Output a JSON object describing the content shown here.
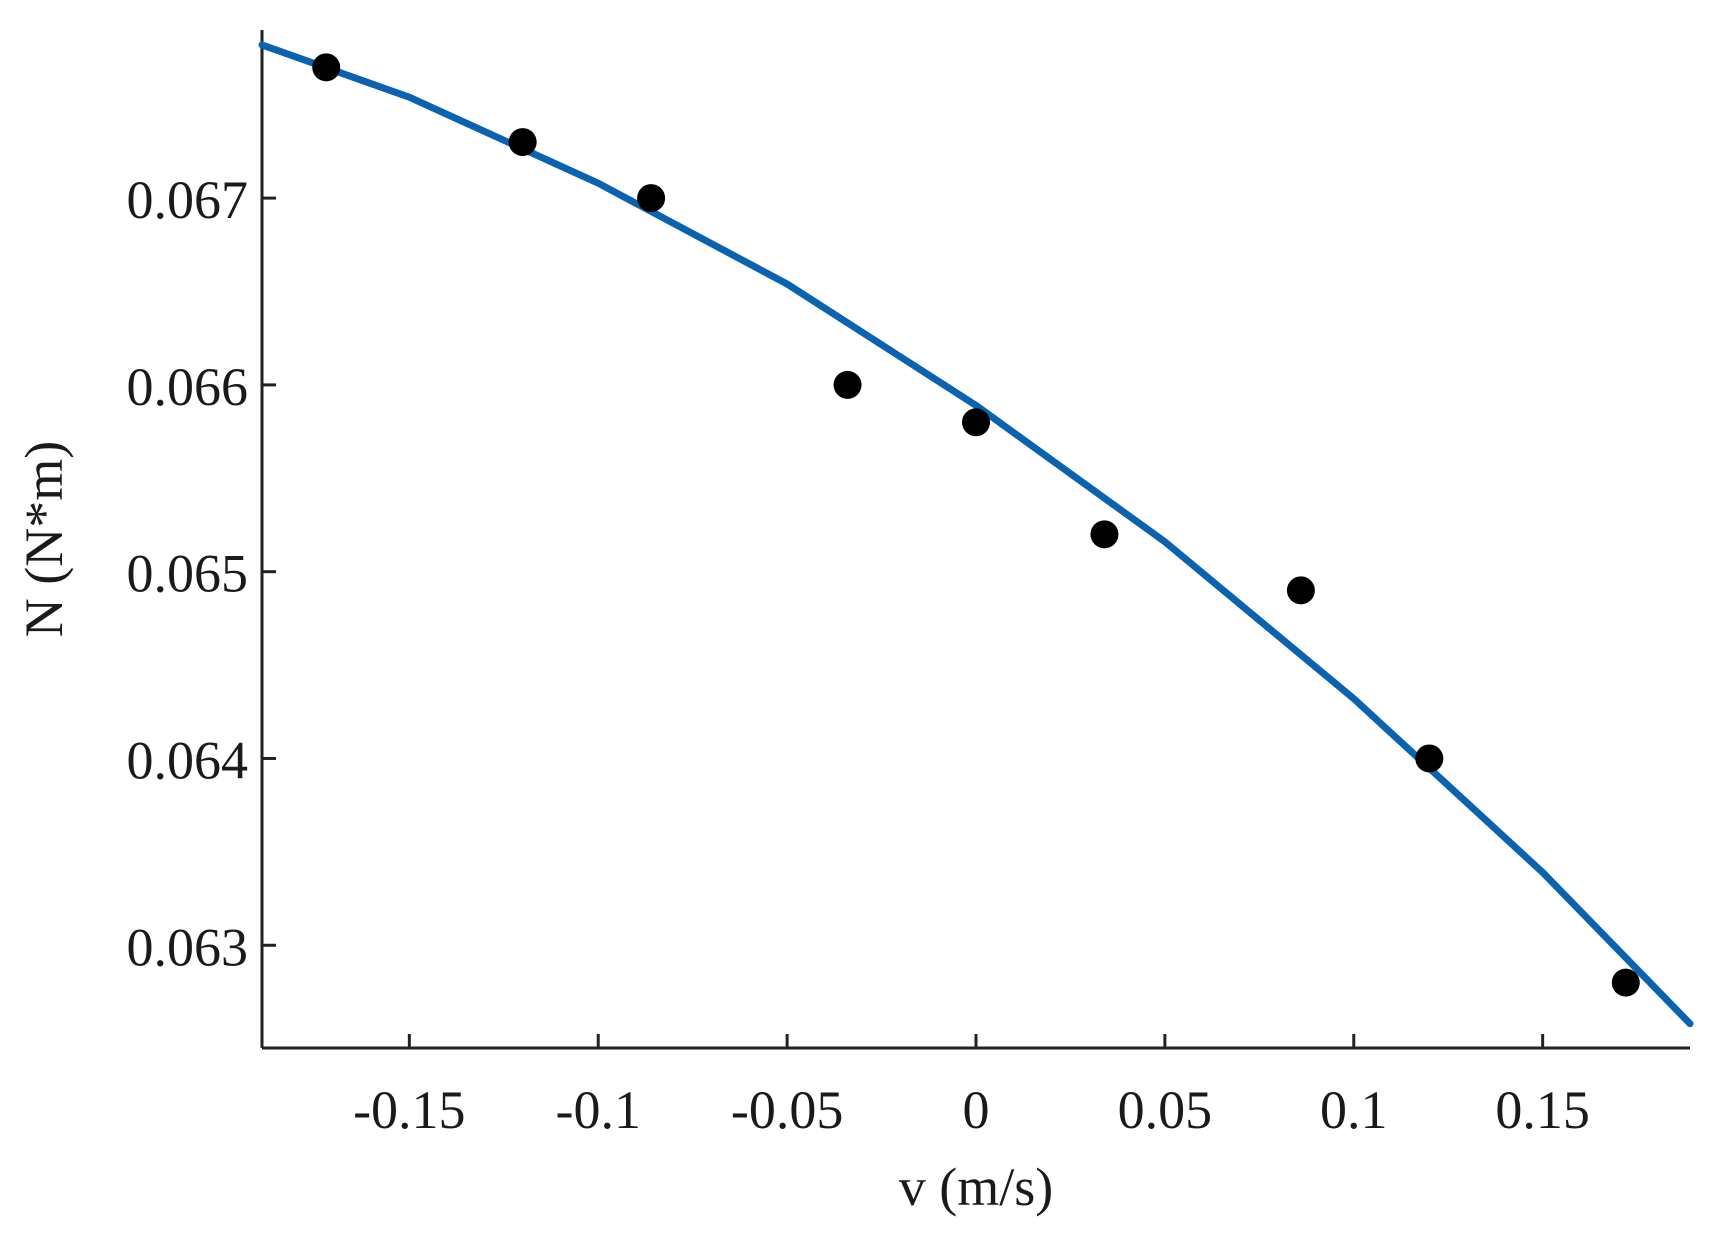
{
  "chart_data": {
    "type": "scatter",
    "title": "",
    "xlabel": "v (m/s)",
    "ylabel": "N (N*m)",
    "xlim": [
      -0.189,
      0.189
    ],
    "ylim": [
      0.06245,
      0.0679
    ],
    "grid": false,
    "x_ticks": [
      {
        "value": -0.15,
        "label": "-0.15"
      },
      {
        "value": -0.1,
        "label": "-0.1"
      },
      {
        "value": -0.05,
        "label": "-0.05"
      },
      {
        "value": 0,
        "label": "0"
      },
      {
        "value": 0.05,
        "label": "0.05"
      },
      {
        "value": 0.1,
        "label": "0.1"
      },
      {
        "value": 0.15,
        "label": "0.15"
      }
    ],
    "y_ticks": [
      {
        "value": 0.063,
        "label": "0.063"
      },
      {
        "value": 0.064,
        "label": "0.064"
      },
      {
        "value": 0.065,
        "label": "0.065"
      },
      {
        "value": 0.066,
        "label": "0.066"
      },
      {
        "value": 0.067,
        "label": "0.067"
      }
    ],
    "series": [
      {
        "kind": "points",
        "color": "#000000",
        "x": [
          -0.172,
          -0.12,
          -0.086,
          -0.034,
          0.0,
          0.034,
          0.086,
          0.12,
          0.172
        ],
        "y": [
          0.0677,
          0.0673,
          0.067,
          0.066,
          0.0658,
          0.0652,
          0.0649,
          0.064,
          0.0628
        ]
      },
      {
        "kind": "fit-line",
        "color": "#0b63b0",
        "x": [
          -0.189,
          -0.15,
          -0.1,
          -0.05,
          0.0,
          0.05,
          0.1,
          0.15,
          0.189
        ],
        "y": [
          0.06782,
          0.06754,
          0.06708,
          0.06654,
          0.06589,
          0.06516,
          0.06432,
          0.06339,
          0.06258
        ]
      }
    ]
  }
}
